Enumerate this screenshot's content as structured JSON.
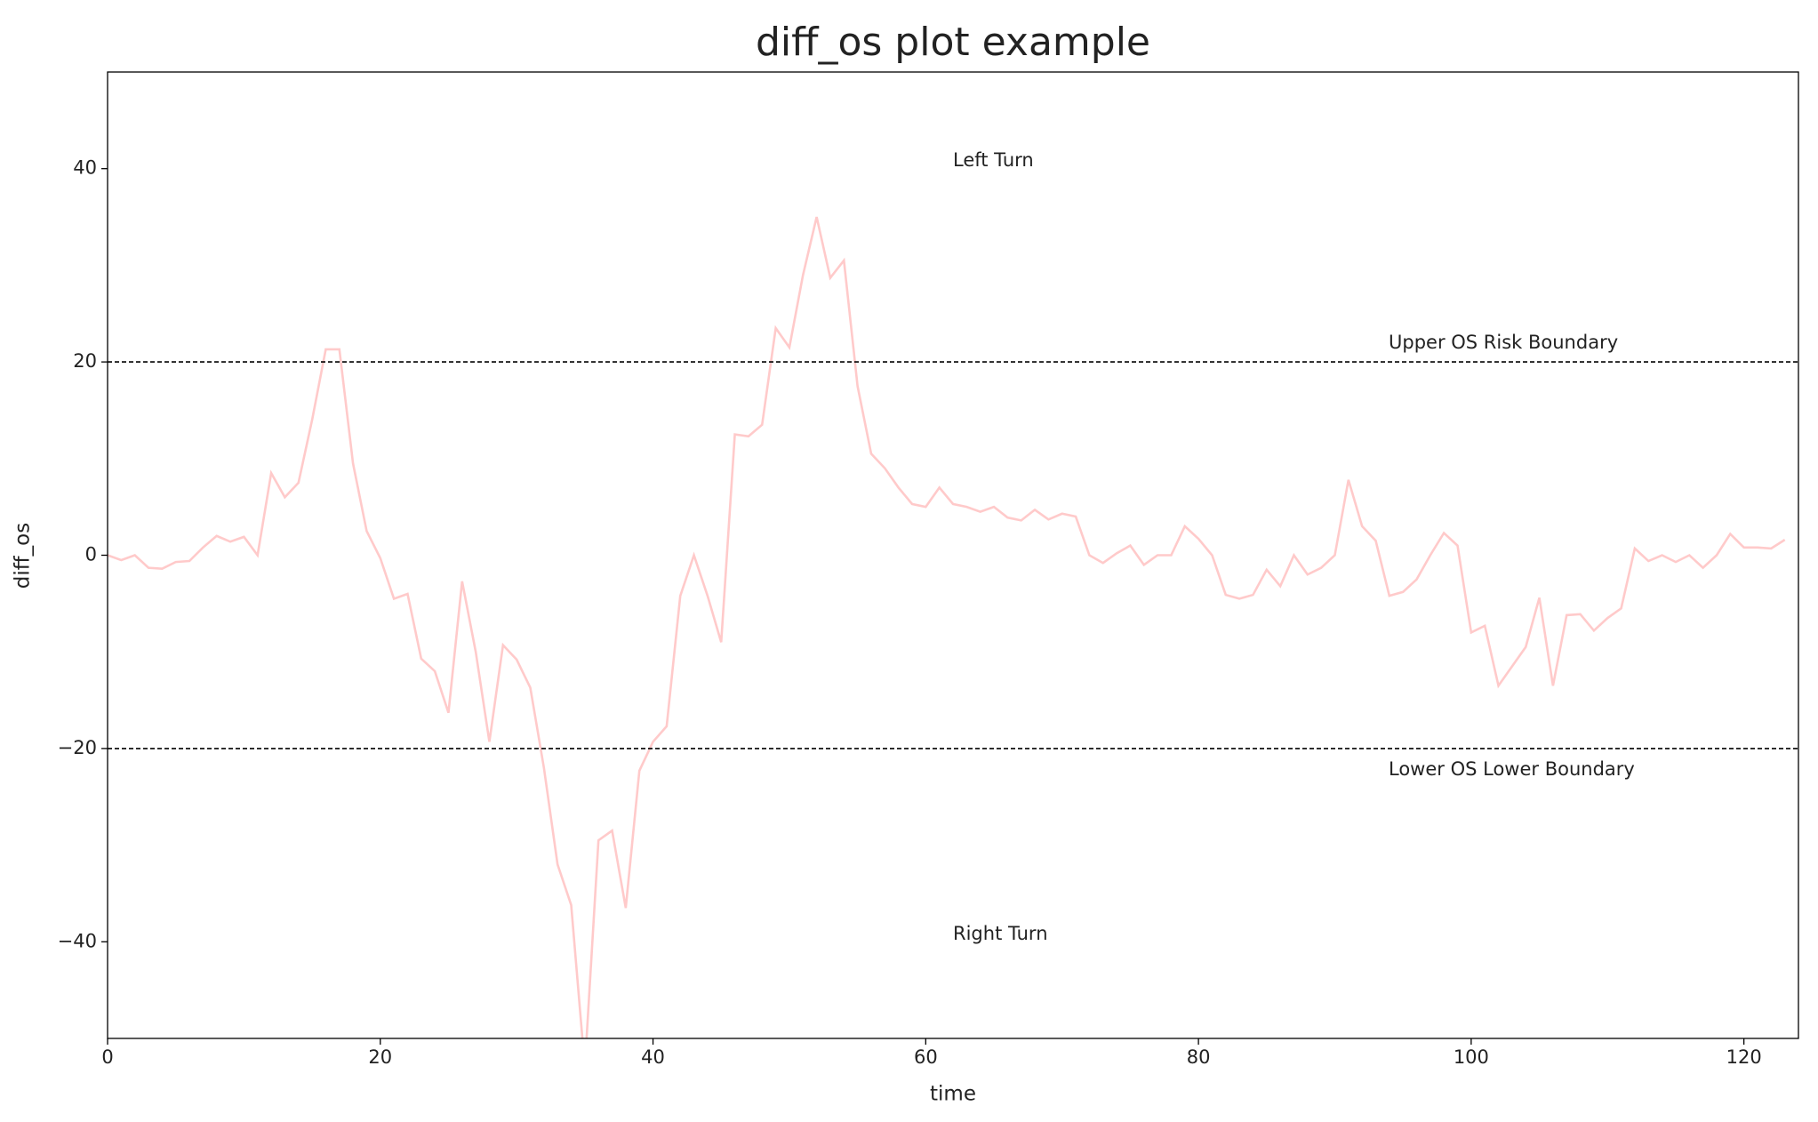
{
  "chart_data": {
    "type": "line",
    "title": "diff_os plot example",
    "x_label": "time",
    "y_label": "diff_os",
    "x": [
      0,
      1,
      2,
      3,
      4,
      5,
      6,
      7,
      8,
      9,
      10,
      11,
      12,
      13,
      14,
      15,
      16,
      17,
      18,
      19,
      20,
      21,
      22,
      23,
      24,
      25,
      26,
      27,
      28,
      29,
      30,
      31,
      32,
      33,
      34,
      35,
      36,
      37,
      38,
      39,
      40,
      41,
      42,
      43,
      44,
      45,
      46,
      47,
      48,
      49,
      50,
      51,
      52,
      53,
      54,
      55,
      56,
      57,
      58,
      59,
      60,
      61,
      62,
      63,
      64,
      65,
      66,
      67,
      68,
      69,
      70,
      71,
      72,
      73,
      74,
      75,
      76,
      77,
      78,
      79,
      80,
      81,
      82,
      83,
      84,
      85,
      86,
      87,
      88,
      89,
      90,
      91,
      92,
      93,
      94,
      95,
      96,
      97,
      98,
      99,
      100,
      101,
      102,
      103,
      104,
      105,
      106,
      107,
      108,
      109,
      110,
      111,
      112,
      113,
      114,
      115,
      116,
      117,
      118,
      119,
      120,
      121,
      122,
      123
    ],
    "series": [
      {
        "color": "#ffcaca",
        "values": [
          0,
          -0.5,
          0,
          -1.3,
          -1.4,
          -0.7,
          -0.6,
          0.8,
          2,
          1.4,
          1.9,
          0,
          8.5,
          6,
          7.5,
          14,
          21.3,
          21.3,
          9.5,
          2.5,
          -0.3,
          -4.5,
          -4,
          -10.7,
          -12,
          -16.3,
          -2.7,
          -10,
          -19.3,
          -9.3,
          -10.8,
          -13.7,
          -22,
          -32,
          -36.2,
          -53,
          -29.5,
          -28.5,
          -36.5,
          -22.3,
          -19.3,
          -17.7,
          -4.2,
          0,
          -4.2,
          -9,
          12.5,
          12.3,
          13.5,
          23.5,
          21.5,
          29,
          35,
          28.7,
          30.5,
          17.5,
          10.5,
          9,
          7,
          5.3,
          5,
          7,
          5.3,
          5,
          4.5,
          5,
          3.9,
          3.6,
          4.7,
          3.7,
          4.3,
          4,
          0,
          -0.8,
          0.2,
          1,
          -1,
          0,
          0,
          3,
          1.7,
          0,
          -4.1,
          -4.5,
          -4.1,
          -1.5,
          -3.2,
          0,
          -2,
          -1.3,
          0,
          7.8,
          3,
          1.5,
          -4.2,
          -3.8,
          -2.5,
          0,
          2.3,
          1,
          -8,
          -7.3,
          -13.5,
          -11.5,
          -9.5,
          -4.4,
          -13.5,
          -6.2,
          -6.1,
          -7.8,
          -6.5,
          -5.5,
          0.7,
          -0.6,
          0,
          -0.7,
          0,
          -1.3,
          0,
          2.2,
          0.8,
          0.8,
          0.7,
          1.6
        ]
      }
    ],
    "hlines": [
      20,
      -20
    ],
    "hline_color": "#000000",
    "annotations": [
      "Left Turn",
      "Right Turn",
      "Upper OS Risk Boundary",
      "Lower OS Lower Boundary"
    ],
    "xlim": [
      0,
      124
    ],
    "xticks": [
      0,
      20,
      40,
      60,
      80,
      100,
      120
    ],
    "ylim": [
      -50,
      50
    ],
    "yticks": [
      {
        "value": -40,
        "label": "−40"
      },
      {
        "value": -20,
        "label": "−20"
      },
      0,
      20,
      40
    ]
  }
}
